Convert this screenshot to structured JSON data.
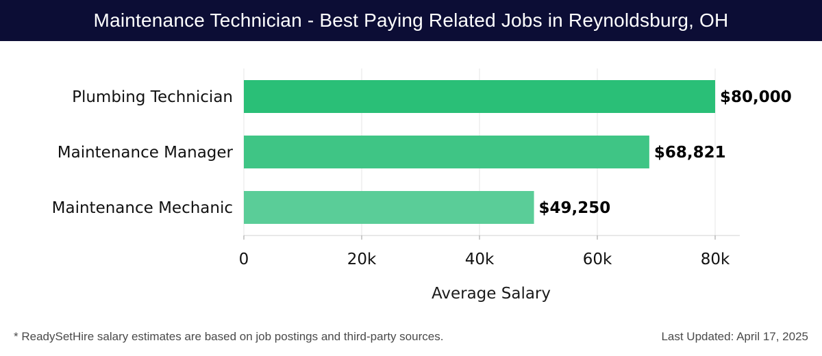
{
  "header": {
    "title": "Maintenance Technician - Best Paying Related Jobs in Reynoldsburg, OH"
  },
  "chart_data": {
    "type": "bar",
    "orientation": "horizontal",
    "title": "Maintenance Technician - Best Paying Related Jobs in Reynoldsburg, OH",
    "xlabel": "Average Salary",
    "ylabel": "",
    "xlim": [
      0,
      84000
    ],
    "xticks": [
      0,
      20000,
      40000,
      60000,
      80000
    ],
    "xtick_labels": [
      "0",
      "20k",
      "40k",
      "60k",
      "80k"
    ],
    "grid": true,
    "categories": [
      "Plumbing Technician",
      "Maintenance Manager",
      "Maintenance Mechanic"
    ],
    "values": [
      80000,
      68821,
      49250
    ],
    "value_labels": [
      "$80,000",
      "$68,821",
      "$49,250"
    ],
    "colors": [
      "#2abf77",
      "#3fc585",
      "#5acd98"
    ]
  },
  "footer": {
    "note": "* ReadySetHire salary estimates are based on job postings and third-party sources.",
    "updated": "Last Updated: April 17, 2025"
  }
}
